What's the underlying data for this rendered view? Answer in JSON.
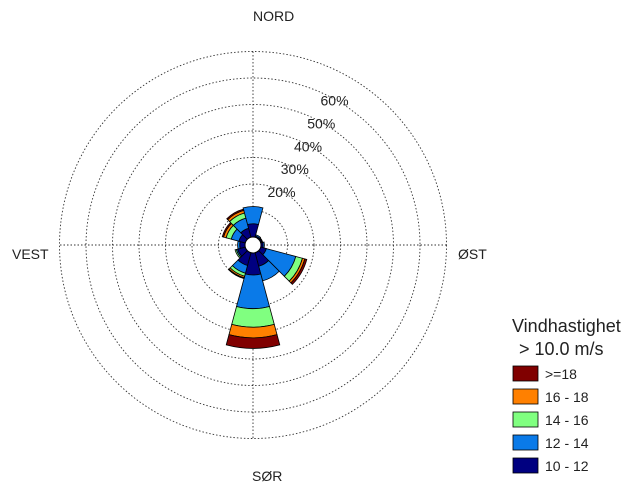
{
  "chart_data": {
    "type": "polar-stacked-bar",
    "title": "",
    "legend": {
      "title_line1": "Vindhastighet",
      "title_line2": "> 10.0 m/s",
      "placement": "right"
    },
    "directions": {
      "north": "NORD",
      "east": "ØST",
      "south": "SØR",
      "west": "VEST"
    },
    "rings": {
      "values": [
        10,
        20,
        30,
        40,
        50,
        60,
        70
      ],
      "labels": [
        "",
        "20%",
        "30%",
        "40%",
        "50%",
        "60%",
        ""
      ],
      "max": 70
    },
    "sector_width_deg": 30,
    "series": [
      {
        "name": "10 - 12",
        "color": "#000080"
      },
      {
        "name": "12 - 14",
        "color": "#0a7ae8"
      },
      {
        "name": "14 - 16",
        "color": "#80ff80"
      },
      {
        "name": "16 - 18",
        "color": "#ff8000"
      },
      {
        "name": ">=18",
        "color": "#800000"
      }
    ],
    "sectors": [
      {
        "direction": 0,
        "values": [
          5,
          6.5,
          0,
          0,
          0
        ]
      },
      {
        "direction": 30,
        "values": [
          0.5,
          0.5,
          0,
          0,
          0
        ]
      },
      {
        "direction": 60,
        "values": [
          0.5,
          0.3,
          0,
          0,
          0
        ]
      },
      {
        "direction": 90,
        "values": [
          0.8,
          0.5,
          0,
          0,
          0
        ]
      },
      {
        "direction": 120,
        "values": [
          2.2,
          11.5,
          2.6,
          0.9,
          0.8
        ]
      },
      {
        "direction": 150,
        "values": [
          5.3,
          5.7,
          0,
          0,
          0
        ]
      },
      {
        "direction": 180,
        "values": [
          8.3,
          12.7,
          7,
          4,
          4
        ]
      },
      {
        "direction": 210,
        "values": [
          5,
          3,
          1.2,
          0.6,
          0.3
        ]
      },
      {
        "direction": 240,
        "values": [
          3,
          0.5,
          0.5,
          0,
          0
        ]
      },
      {
        "direction": 270,
        "values": [
          2,
          0.8,
          0,
          0,
          0
        ]
      },
      {
        "direction": 300,
        "values": [
          2.5,
          3,
          2,
          1,
          0.5
        ]
      },
      {
        "direction": 330,
        "values": [
          3.5,
          4,
          2,
          1,
          0.5
        ]
      }
    ],
    "legend_order": [
      ">=18",
      "16 - 18",
      "14 - 16",
      "12 - 14",
      "10 - 12"
    ]
  }
}
